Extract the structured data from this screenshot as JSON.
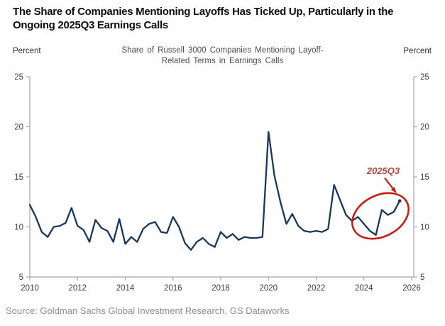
{
  "header": {
    "title": "The Share of Companies Mentioning Layoffs Has Ticked Up, Particularly in the Ongoing 2025Q3 Earnings Calls"
  },
  "axis_units": {
    "left": "Percent",
    "right": "Percent"
  },
  "source_line": "Source: Goldman Sachs Global Investment Research, GS Dataworks",
  "chart_data": {
    "type": "line",
    "title": "Share of Russell 3000 Companies Mentioning Layoff-Related Terms in Earnings Calls",
    "xlabel": "",
    "ylabel": "Percent",
    "x_start": 2010.0,
    "x_step": 0.25,
    "x_frequency": "quarterly",
    "xlim": [
      2010,
      2026
    ],
    "ylim": [
      5,
      25
    ],
    "grid": false,
    "legend": "none",
    "x_ticks": [
      2010,
      2012,
      2014,
      2016,
      2018,
      2020,
      2022,
      2024,
      2026
    ],
    "y_ticks": [
      5,
      10,
      15,
      20,
      25
    ],
    "line_color": "#17375e",
    "axis_color": "#a6a6a6",
    "tick_label_color": "#3d3d3d",
    "series": [
      {
        "name": "Share of Russell 3000 companies mentioning layoff-related terms in earnings calls (%)",
        "values": [
          12.2,
          11.0,
          9.5,
          9.0,
          10.0,
          10.1,
          10.4,
          11.9,
          10.1,
          9.7,
          8.5,
          10.7,
          9.9,
          9.6,
          8.5,
          10.8,
          8.3,
          9.0,
          8.5,
          9.8,
          10.3,
          10.5,
          9.5,
          9.4,
          11.0,
          10.0,
          8.4,
          7.7,
          8.5,
          8.9,
          8.3,
          8.0,
          9.5,
          8.9,
          9.3,
          8.7,
          9.0,
          8.9,
          8.9,
          9.0,
          19.5,
          15.1,
          12.5,
          10.3,
          11.3,
          10.1,
          9.6,
          9.5,
          9.6,
          9.5,
          9.8,
          14.2,
          12.7,
          11.2,
          10.6,
          11.0,
          10.3,
          9.6,
          9.2,
          11.7,
          11.2,
          11.5,
          12.6
        ]
      }
    ],
    "annotation": {
      "label": "2025Q3",
      "label_color": "#b5463c",
      "circle_color": "#c41d14",
      "marks_x": 2025.5,
      "marks_y": 12.6
    }
  }
}
